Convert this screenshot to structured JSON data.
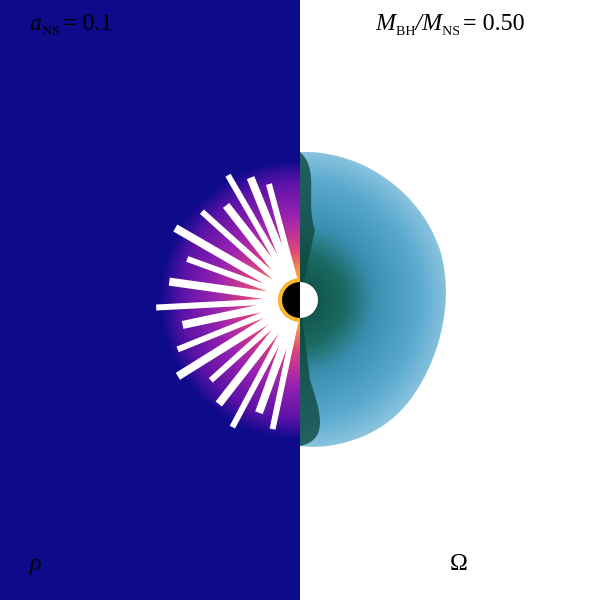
{
  "panels": {
    "left": {
      "label": {
        "symbol": "a",
        "subscript": "NS",
        "rest": "= 0.1"
      },
      "quantity": "ρ"
    },
    "right": {
      "label": {
        "symbol": "M",
        "subscript": "BH",
        "middle": "/M",
        "subscript2": "NS",
        "rest": "= 0.50"
      },
      "quantity": "Ω"
    }
  }
}
